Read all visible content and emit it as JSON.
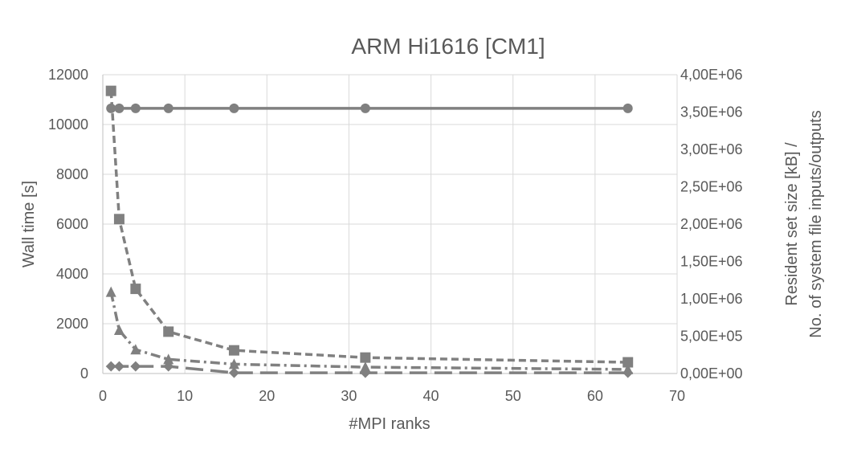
{
  "chart_data": {
    "type": "line",
    "title": "ARM Hi1616 [CM1]",
    "xlabel": "#MPI ranks",
    "ylabel": "Wall time [s]",
    "y2label_line1": "Resident set size [kB] /",
    "y2label_line2": "No. of system file inputs/outputs",
    "xlim": [
      0,
      70
    ],
    "ylim": [
      0,
      12000
    ],
    "y2lim": [
      0,
      4000000
    ],
    "x_ticks": [
      "0",
      "10",
      "20",
      "30",
      "40",
      "50",
      "60",
      "70"
    ],
    "y_ticks": [
      "0",
      "2000",
      "4000",
      "6000",
      "8000",
      "10000",
      "12000"
    ],
    "y2_ticks": [
      "0,00E+00",
      "5,00E+05",
      "1,00E+06",
      "1,50E+06",
      "2,00E+06",
      "2,50E+06",
      "3,00E+06",
      "3,50E+06",
      "4,00E+06"
    ],
    "grid": true,
    "colors": {
      "series": "#808080",
      "grid": "#d9d9d9",
      "text": "#595959"
    },
    "series": [
      {
        "axis": "y2",
        "marker": "circle",
        "dash": "solid",
        "points": [
          [
            1,
            3550000
          ],
          [
            2,
            3550000
          ],
          [
            4,
            3550000
          ],
          [
            8,
            3550000
          ],
          [
            16,
            3550000
          ],
          [
            32,
            3550000
          ],
          [
            64,
            3550000
          ]
        ]
      },
      {
        "axis": "y",
        "marker": "square",
        "dash": "dashed",
        "points": [
          [
            1,
            11350
          ],
          [
            2,
            6200
          ],
          [
            4,
            3400
          ],
          [
            8,
            1680
          ],
          [
            16,
            930
          ],
          [
            32,
            640
          ],
          [
            64,
            450
          ]
        ]
      },
      {
        "axis": "y2",
        "marker": "triangle",
        "dash": "dashdot",
        "points": [
          [
            1,
            1090000
          ],
          [
            2,
            580000
          ],
          [
            4,
            320000
          ],
          [
            8,
            190000
          ],
          [
            16,
            125000
          ],
          [
            32,
            85000
          ],
          [
            64,
            55000
          ]
        ]
      },
      {
        "axis": "y2",
        "marker": "diamond",
        "dash": "longdash",
        "points": [
          [
            1,
            95000
          ],
          [
            2,
            95000
          ],
          [
            4,
            95000
          ],
          [
            8,
            95000
          ],
          [
            16,
            10000
          ],
          [
            32,
            10000
          ],
          [
            64,
            10000
          ]
        ]
      }
    ]
  }
}
